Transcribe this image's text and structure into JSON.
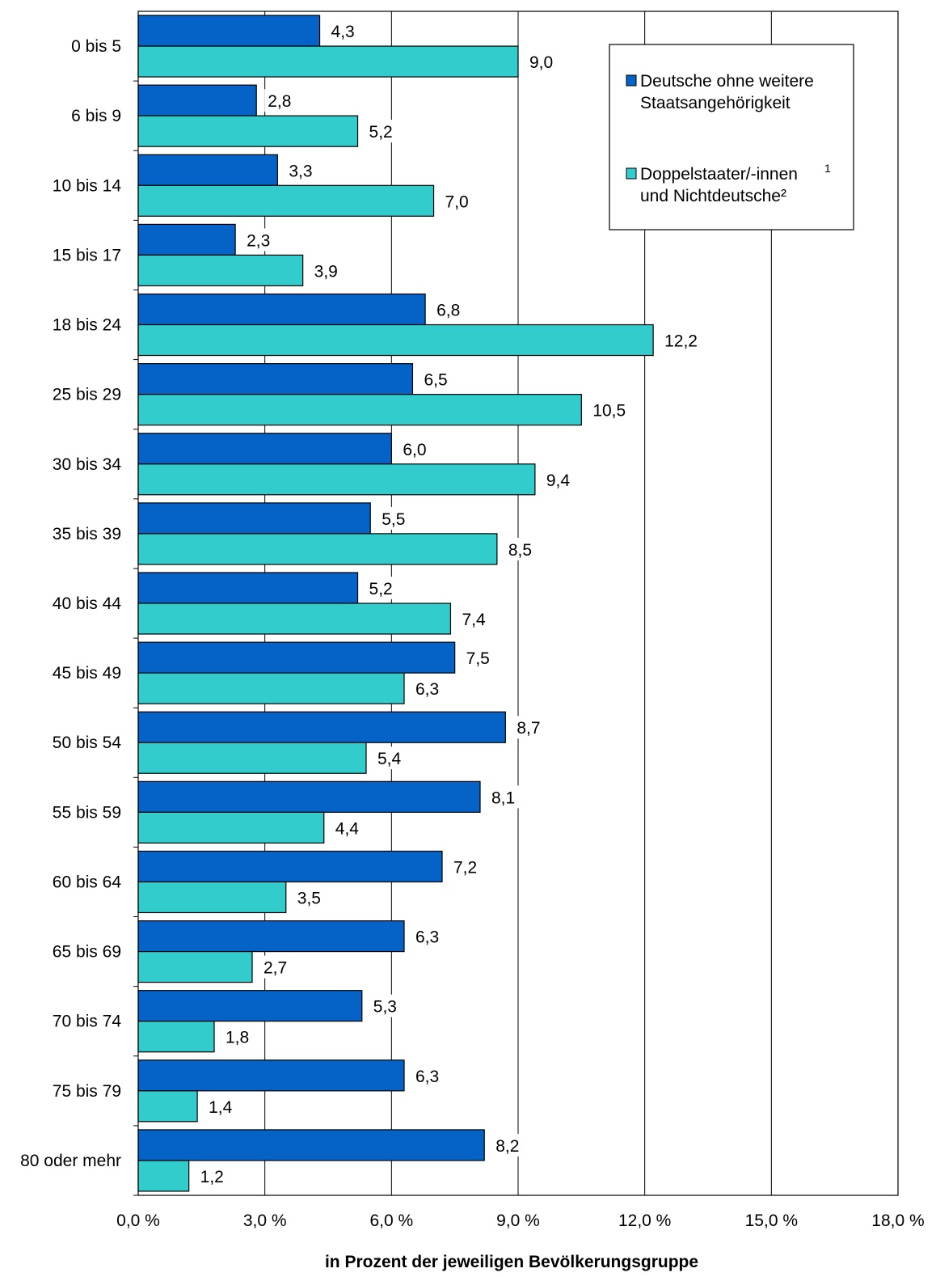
{
  "chart_data": {
    "type": "bar",
    "orientation": "horizontal",
    "categories": [
      "0 bis 5",
      "6 bis 9",
      "10 bis 14",
      "15 bis 17",
      "18 bis 24",
      "25 bis 29",
      "30 bis 34",
      "35 bis 39",
      "40 bis 44",
      "45 bis 49",
      "50 bis 54",
      "55 bis 59",
      "60 bis 64",
      "65 bis 69",
      "70 bis 74",
      "75 bis 79",
      "80 oder mehr"
    ],
    "series": [
      {
        "legend_lines": [
          "Deutsche ohne weitere",
          "Staatsangehörigkeit"
        ],
        "color": "#0563c8",
        "values": [
          4.3,
          2.8,
          3.3,
          2.3,
          6.8,
          6.5,
          6.0,
          5.5,
          5.2,
          7.5,
          8.7,
          8.1,
          7.2,
          6.3,
          5.3,
          6.3,
          8.2
        ],
        "labels": [
          "4,3",
          "2,8",
          "3,3",
          "2,3",
          "6,8",
          "6,5",
          "6,0",
          "5,5",
          "5,2",
          "7,5",
          "8,7",
          "8,1",
          "7,2",
          "6,3",
          "5,3",
          "6,3",
          "8,2"
        ]
      },
      {
        "legend_lines": [
          "Doppelstaater/-innen",
          "und Nichtdeutsche²"
        ],
        "legend_superscript": "1",
        "color": "#33cccc",
        "values": [
          9.0,
          5.2,
          7.0,
          3.9,
          12.2,
          10.5,
          9.4,
          8.5,
          7.4,
          6.3,
          5.4,
          4.4,
          3.5,
          2.7,
          1.8,
          1.4,
          1.2
        ],
        "labels": [
          "9,0",
          "5,2",
          "7,0",
          "3,9",
          "12,2",
          "10,5",
          "9,4",
          "8,5",
          "7,4",
          "6,3",
          "5,4",
          "4,4",
          "3,5",
          "2,7",
          "1,8",
          "1,4",
          "1,2"
        ]
      }
    ],
    "xlim": [
      0,
      18
    ],
    "xticks": [
      0,
      3,
      6,
      9,
      12,
      15,
      18
    ],
    "xtick_labels": [
      "0,0 %",
      "3,0 %",
      "6,0 %",
      "9,0 %",
      "12,0 %",
      "15,0 %",
      "18,0 %"
    ],
    "xlabel": "in Prozent der jeweiligen Bevölkerungsgruppe",
    "grid": "vertical",
    "legend_position": "top-right"
  }
}
